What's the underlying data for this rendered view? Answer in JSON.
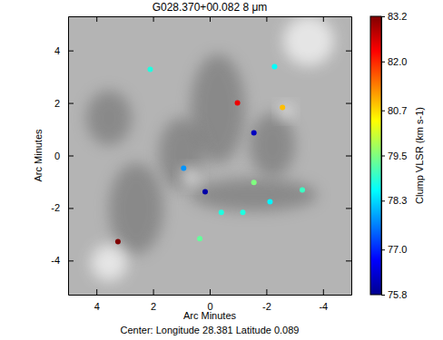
{
  "chart_data": {
    "type": "scatter",
    "title": "G028.370+00.082  8 μm",
    "subtitle": "Center:  Longitude 28.381 Latitude 0.089",
    "x_label": "Arc Minutes",
    "y_label": "Arc Minutes",
    "xlim": [
      5,
      -5
    ],
    "ylim": [
      -5.3,
      5.3
    ],
    "xticks": [
      4,
      2,
      0,
      -2,
      -4
    ],
    "yticks": [
      -4,
      -2,
      0,
      2,
      4
    ],
    "marker": "circle",
    "series": [
      {
        "x": [
          2.1,
          -2.29,
          -0.98,
          -2.57,
          -1.56,
          0.92,
          0.16,
          -1.56,
          -3.27,
          -2.13,
          -0.41,
          -1.17,
          0.35,
          3.24
        ],
        "values": [
          3.28,
          3.38,
          2.0,
          1.83,
          0.86,
          -0.48,
          -1.38,
          -1.03,
          -1.31,
          -1.76,
          -2.17,
          -2.17,
          -3.17,
          -3.28
        ],
        "color_values": [
          78.8,
          78.6,
          82.4,
          80.9,
          76.2,
          77.8,
          76.0,
          79.5,
          79.0,
          78.5,
          78.8,
          78.8,
          79.3,
          83.2
        ]
      }
    ],
    "colorbar": {
      "label": "Clump VLSR (km s-1)",
      "range": [
        75.8,
        83.2
      ],
      "ticks": [
        75.8,
        {
          "value": 77,
          "label": "77.0"
        },
        78.3,
        79.5,
        80.7,
        {
          "value": 82,
          "label": "82.0"
        },
        83.2
      ]
    }
  }
}
